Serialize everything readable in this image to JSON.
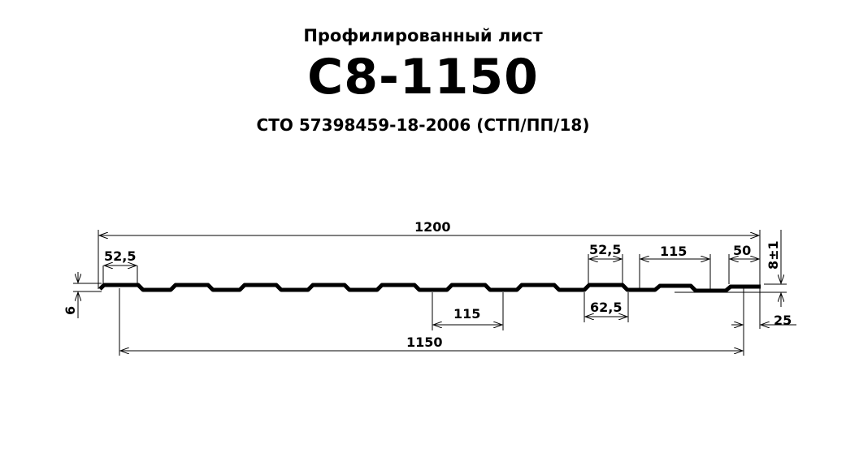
{
  "header": {
    "subtitle": "Профилированный  лист",
    "title": "С8-1150",
    "standard": "СТО  57398459-18-2006  (СТП/ПП/18)"
  },
  "dimensions": {
    "total_width": "1200",
    "useful_width": "1150",
    "left_top_flat": "52,5",
    "right_top_flat": "52,5",
    "pitch_top": "115",
    "pitch_bottom": "115",
    "rib_bottom_width": "62,5",
    "edge_flat": "50",
    "height": "8±1",
    "edge_offset": "25",
    "left_height": "6"
  },
  "colors": {
    "line": "#000000",
    "background": "#ffffff"
  }
}
